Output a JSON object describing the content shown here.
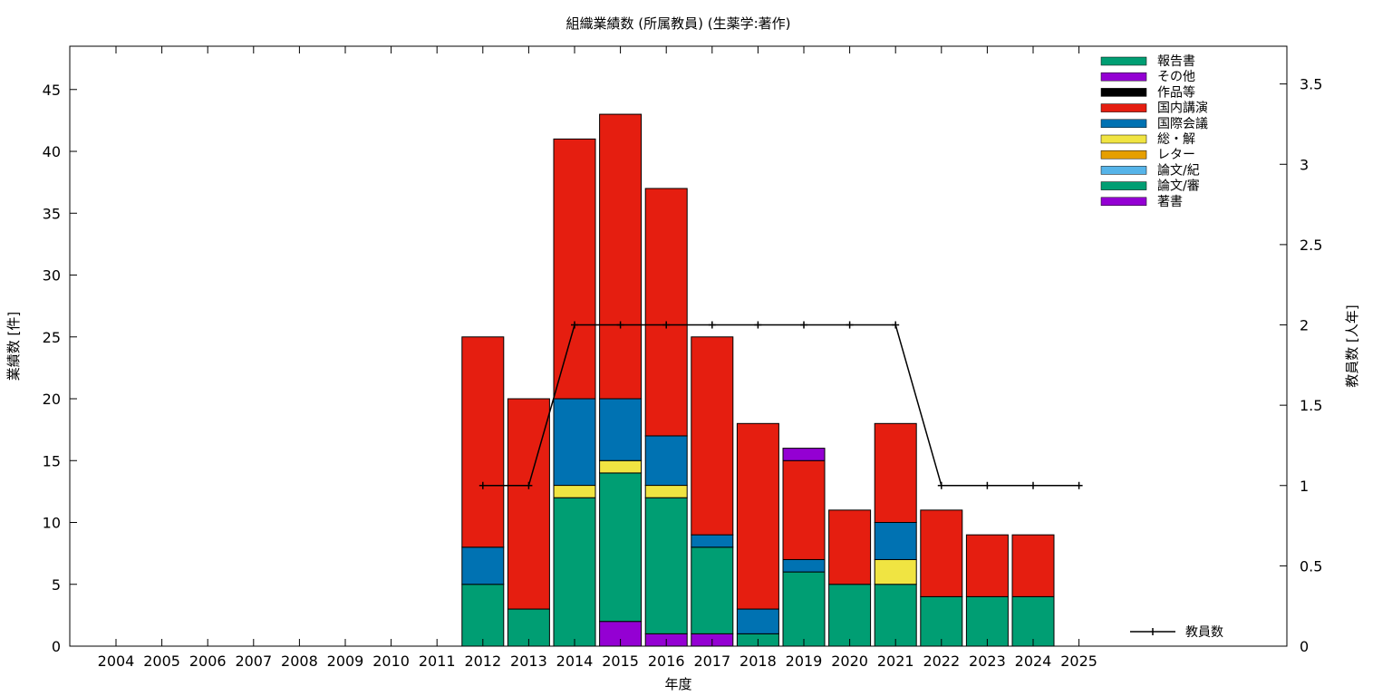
{
  "chart_data": {
    "type": "bar",
    "title": "組織業績数 (所属教員) (生薬学:著作)",
    "xlabel": "年度",
    "ylabel": "業績数 [件]",
    "y2label": "教員数 [人年]",
    "categories": [
      "2004",
      "2005",
      "2006",
      "2007",
      "2008",
      "2009",
      "2010",
      "2011",
      "2012",
      "2013",
      "2014",
      "2015",
      "2016",
      "2017",
      "2018",
      "2019",
      "2020",
      "2021",
      "2022",
      "2023",
      "2024",
      "2025"
    ],
    "ylim": [
      0,
      48.5
    ],
    "y2lim": [
      0,
      3.735
    ],
    "yticks": [
      0,
      5,
      10,
      15,
      20,
      25,
      30,
      35,
      40,
      45
    ],
    "y2ticks": [
      0,
      0.5,
      1,
      1.5,
      2,
      2.5,
      3,
      3.5
    ],
    "y2ticklabels": [
      "0",
      "0.5",
      "1",
      "1.5",
      "2",
      "2.5",
      "3",
      "3.5"
    ],
    "stacked": true,
    "legend_position": "top-right",
    "series": [
      {
        "name": "著書",
        "color": "#9400d3",
        "values": [
          0,
          0,
          0,
          0,
          0,
          0,
          0,
          0,
          0,
          0,
          0,
          2,
          1,
          1,
          0,
          0,
          0,
          0,
          0,
          0,
          0,
          0
        ]
      },
      {
        "name": "論文/審",
        "color": "#009e73",
        "values": [
          0,
          0,
          0,
          0,
          0,
          0,
          0,
          0,
          5,
          3,
          12,
          12,
          11,
          7,
          1,
          6,
          5,
          5,
          4,
          4,
          4,
          0
        ]
      },
      {
        "name": "論文/紀",
        "color": "#56b4e9",
        "values": [
          0,
          0,
          0,
          0,
          0,
          0,
          0,
          0,
          0,
          0,
          0,
          0,
          0,
          0,
          0,
          0,
          0,
          0,
          0,
          0,
          0,
          0
        ]
      },
      {
        "name": "レター",
        "color": "#e69f00",
        "values": [
          0,
          0,
          0,
          0,
          0,
          0,
          0,
          0,
          0,
          0,
          0,
          0,
          0,
          0,
          0,
          0,
          0,
          0,
          0,
          0,
          0,
          0
        ]
      },
      {
        "name": "総・解",
        "color": "#f0e442",
        "values": [
          0,
          0,
          0,
          0,
          0,
          0,
          0,
          0,
          0,
          0,
          1,
          1,
          1,
          0,
          0,
          0,
          0,
          2,
          0,
          0,
          0,
          0
        ]
      },
      {
        "name": "国際会議",
        "color": "#0072b2",
        "values": [
          0,
          0,
          0,
          0,
          0,
          0,
          0,
          0,
          3,
          0,
          7,
          5,
          4,
          1,
          2,
          1,
          0,
          3,
          0,
          0,
          0,
          0
        ]
      },
      {
        "name": "国内講演",
        "color": "#e51e10",
        "values": [
          0,
          0,
          0,
          0,
          0,
          0,
          0,
          0,
          17,
          17,
          21,
          23,
          20,
          16,
          15,
          8,
          6,
          8,
          7,
          5,
          5,
          0
        ]
      },
      {
        "name": "作品等",
        "color": "#000000",
        "values": [
          0,
          0,
          0,
          0,
          0,
          0,
          0,
          0,
          0,
          0,
          0,
          0,
          0,
          0,
          0,
          0,
          0,
          0,
          0,
          0,
          0,
          0
        ]
      },
      {
        "name": "その他",
        "color": "#9400d3",
        "values": [
          0,
          0,
          0,
          0,
          0,
          0,
          0,
          0,
          0,
          0,
          0,
          0,
          0,
          0,
          0,
          1,
          0,
          0,
          0,
          0,
          0,
          0
        ]
      },
      {
        "name": "報告書",
        "color": "#009e73",
        "values": [
          0,
          0,
          0,
          0,
          0,
          0,
          0,
          0,
          0,
          0,
          0,
          0,
          0,
          0,
          0,
          0,
          0,
          0,
          0,
          0,
          0,
          0
        ]
      }
    ],
    "line_series": {
      "name": "教員数",
      "color": "#000000",
      "axis": "y2",
      "x": [
        "2012",
        "2013",
        "2014",
        "2015",
        "2016",
        "2017",
        "2018",
        "2019",
        "2020",
        "2021",
        "2022",
        "2023",
        "2024",
        "2025"
      ],
      "values": [
        1,
        1,
        2,
        2,
        2,
        2,
        2,
        2,
        2,
        2,
        1,
        1,
        1,
        1
      ]
    }
  }
}
